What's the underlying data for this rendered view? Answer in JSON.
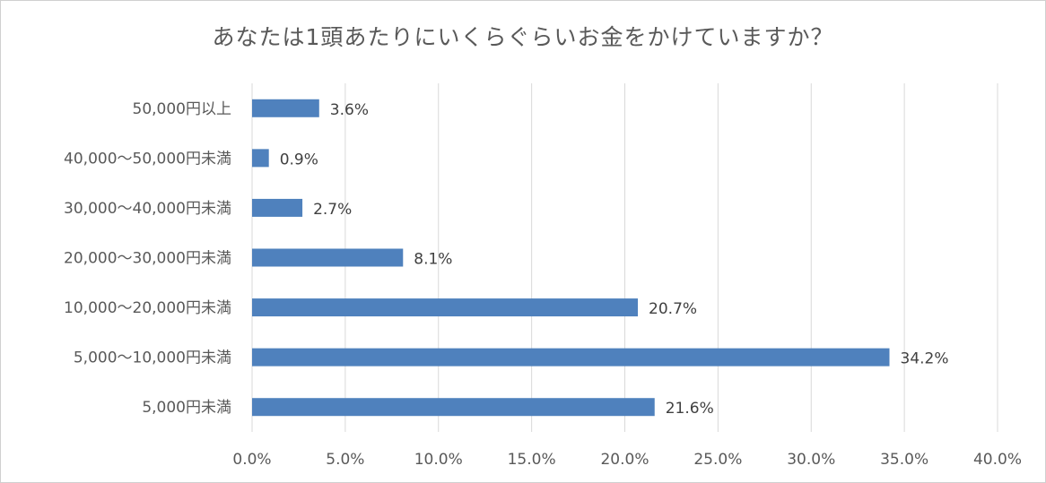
{
  "chart_data": {
    "type": "bar",
    "orientation": "horizontal",
    "title": "あなたは1頭あたりにいくらぐらいお金をかけていますか？",
    "xlabel": "",
    "ylabel": "",
    "categories": [
      "50,000円以上",
      "40,000〜50,000円未満",
      "30,000〜40,000円未満",
      "20,000〜30,000円未満",
      "10,000〜20,000円未満",
      "5,000〜10,000円未満",
      "5,000円未満"
    ],
    "values": [
      3.6,
      0.9,
      2.7,
      8.1,
      20.7,
      34.2,
      21.6
    ],
    "data_labels": [
      "3.6%",
      "0.9%",
      "2.7%",
      "8.1%",
      "20.7%",
      "34.2%",
      "21.6%"
    ],
    "xlim": [
      0,
      40
    ],
    "ticks": [
      0,
      5,
      10,
      15,
      20,
      25,
      30,
      35,
      40
    ],
    "tick_labels": [
      "0.0%",
      "5.0%",
      "10.0%",
      "15.0%",
      "20.0%",
      "25.0%",
      "30.0%",
      "35.0%",
      "40.0%"
    ],
    "grid": true,
    "bar_color": "#4f81bd",
    "grid_color": "#d9d9d9"
  }
}
